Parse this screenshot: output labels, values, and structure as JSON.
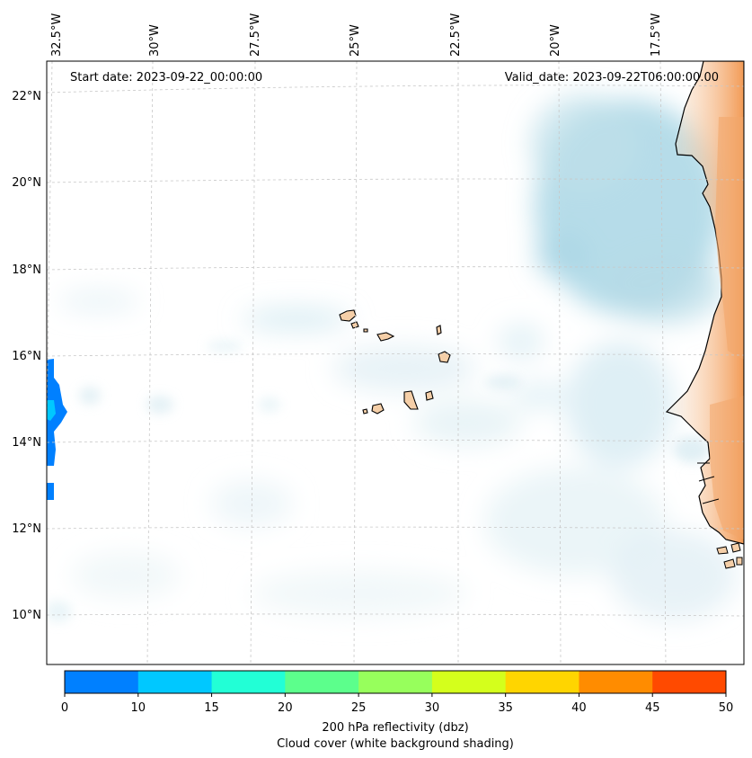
{
  "map": {
    "start_date": "Start date: 2023-09-22_00:00:00",
    "valid_date": "Valid_date: 2023-09-22T06:00:00.00",
    "lon_labels": [
      "32.5°W",
      "30°W",
      "27.5°W",
      "25°W",
      "22.5°W",
      "20°W",
      "17.5°W"
    ],
    "lat_labels": [
      "22°N",
      "20°N",
      "18°N",
      "16°N",
      "14°N",
      "12°N",
      "10°N"
    ],
    "land_color": "#f5cfa8",
    "coast_color": "#000000",
    "cloud_color": "#a9d6e5"
  },
  "colorbar": {
    "ticks": [
      "0",
      "10",
      "15",
      "20",
      "25",
      "30",
      "35",
      "40",
      "45",
      "50"
    ],
    "colors": [
      "#0080ff",
      "#00c8ff",
      "#22ffd6",
      "#5cff8c",
      "#97ff5c",
      "#d4ff1c",
      "#ffd500",
      "#ff8c00",
      "#ff4a00"
    ],
    "label_line1": "200 hPa reflectivity (dbz)",
    "label_line2": "Cloud cover (white background shading)"
  }
}
